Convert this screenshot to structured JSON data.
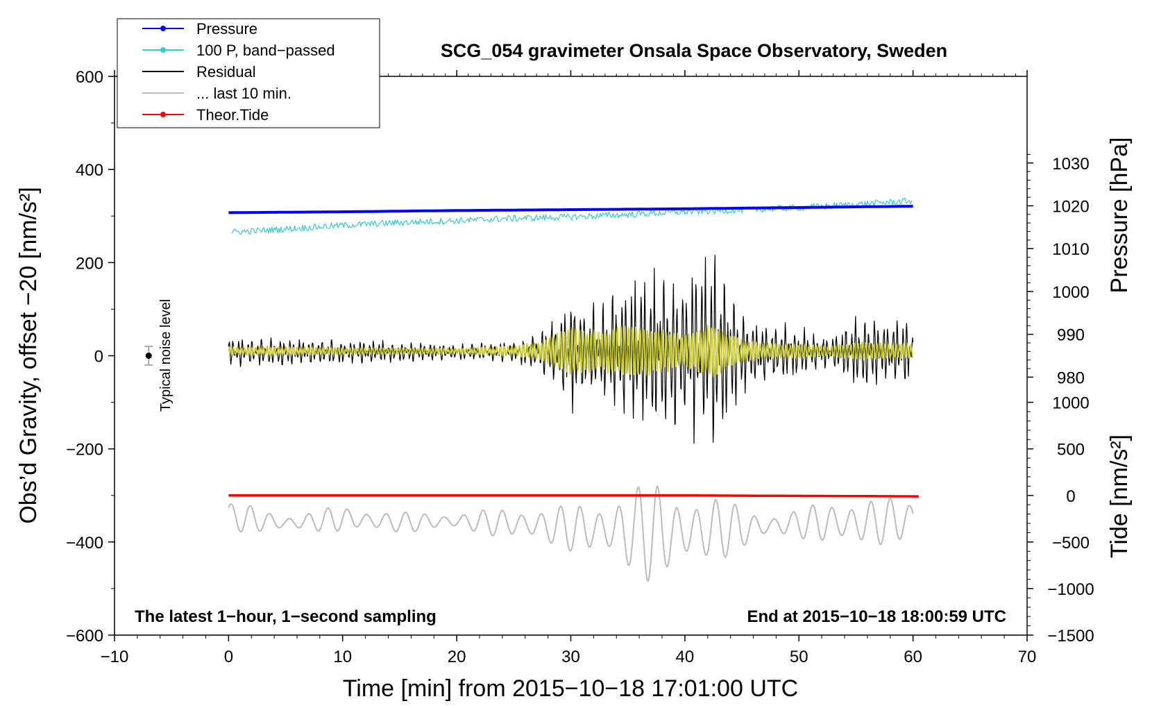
{
  "chart_data": {
    "type": "line",
    "title": "SCG_054 gravimeter Onsala Space Observatory, Sweden",
    "xlabel": "Time [min] from 2015−10−18 17:01:00 UTC",
    "ylabel_left": "Obs’d Gravity, offset −20 [nm/s²]",
    "ylabel_right_pressure": "Pressure [hPa]",
    "ylabel_right_tide": "Tide [nm/s²]",
    "xlim": [
      -10,
      70
    ],
    "ylim_left": [
      -600,
      600
    ],
    "x_ticks": [
      -10,
      0,
      10,
      20,
      30,
      40,
      50,
      60,
      70
    ],
    "x_tick_labels": [
      "−10",
      "0",
      "10",
      "20",
      "30",
      "40",
      "50",
      "60",
      "70"
    ],
    "y_left_ticks": [
      600,
      400,
      200,
      0,
      -200,
      -400,
      -600
    ],
    "y_left_tick_labels": [
      "600",
      "400",
      "200",
      "0",
      "−200",
      "−400",
      "−600"
    ],
    "pressure_axis": {
      "ticks": [
        1030,
        1020,
        1010,
        1000,
        990,
        980
      ],
      "labels": [
        "1030",
        "1020",
        "1010",
        "1000",
        "990",
        "980"
      ],
      "ref_gravity": 0,
      "ref_pressure": 985,
      "gravity_per_hpa": 9.2
    },
    "tide_axis": {
      "ticks": [
        1000,
        500,
        0,
        -500,
        -1000,
        -1500
      ],
      "labels": [
        "1000",
        "500",
        "0",
        "−500",
        "−1000",
        "−1500"
      ],
      "gravity_per_unit": 0.2,
      "offset": -300
    },
    "legend": {
      "position": "top-left",
      "entries": [
        {
          "label": "Pressure",
          "color": "#0000ff",
          "marker": "dot"
        },
        {
          "label": "100 P, band−passed",
          "color": "#33cccc",
          "marker": "dot"
        },
        {
          "label": "Residual",
          "color": "#000000",
          "marker": "none"
        },
        {
          "label": "... last 10 min.",
          "color": "#bbbbbb",
          "marker": "none"
        },
        {
          "label": "Theor.Tide",
          "color": "#ff0000",
          "marker": "dot"
        }
      ]
    },
    "series": [
      {
        "name": "Pressure",
        "color": "#0000ff",
        "axis": "pressure",
        "x": [
          0,
          10,
          20,
          30,
          40,
          50,
          60
        ],
        "values": [
          1018.4,
          1018.6,
          1018.9,
          1019.1,
          1019.3,
          1019.6,
          1019.9
        ]
      },
      {
        "name": "100 P, band−passed",
        "color": "#33cccc",
        "axis": "left",
        "x": [
          0,
          5,
          10,
          15,
          20,
          25,
          30,
          35,
          40,
          45,
          50,
          55,
          60
        ],
        "values": [
          265,
          272,
          280,
          286,
          290,
          295,
          298,
          303,
          309,
          313,
          318,
          325,
          333
        ]
      },
      {
        "name": "Residual",
        "color": "#000000",
        "axis": "left",
        "x": [
          0,
          5,
          10,
          15,
          20,
          25,
          27.5,
          30,
          32.5,
          35,
          37.5,
          40,
          42.5,
          45,
          47.5,
          50,
          52.5,
          55,
          57.5,
          60
        ],
        "amplitude": [
          25,
          27,
          22,
          20,
          15,
          18,
          40,
          110,
          80,
          140,
          160,
          140,
          200,
          80,
          55,
          50,
          25,
          70,
          60,
          65
        ]
      },
      {
        "name": "... last 10 min.",
        "color": "#bbbbbb",
        "axis": "left",
        "x": [
          0,
          5,
          10,
          15,
          20,
          25,
          27.5,
          30,
          32.5,
          35,
          37.5,
          40,
          42.5,
          45,
          47.5,
          50,
          52.5,
          55,
          57.5,
          60
        ],
        "center": [
          -345,
          -360,
          -350,
          -358,
          -355,
          -360,
          -365,
          -370,
          -372,
          -375,
          -380,
          -378,
          -372,
          -370,
          -365,
          -360,
          -358,
          -360,
          -355,
          -352
        ],
        "amplitude": [
          35,
          18,
          28,
          22,
          18,
          35,
          40,
          50,
          60,
          95,
          110,
          85,
          70,
          50,
          25,
          30,
          50,
          55,
          50,
          45
        ]
      },
      {
        "name": "Theor.Tide",
        "color": "#ff0000",
        "axis": "tide",
        "x": [
          0,
          10,
          20,
          30,
          40,
          50,
          60.5
        ],
        "values": [
          0,
          0,
          0,
          0,
          0,
          -5,
          -10
        ]
      },
      {
        "name": "band-passed residual",
        "color": "#cccc22",
        "axis": "left",
        "x": [
          0,
          5,
          10,
          15,
          20,
          25,
          27.5,
          30,
          32.5,
          35,
          37.5,
          40,
          42.5,
          45,
          47.5,
          50,
          52.5,
          55,
          57.5,
          60
        ],
        "amplitude": [
          8,
          9,
          7,
          6,
          6,
          10,
          20,
          50,
          40,
          55,
          45,
          35,
          55,
          22,
          15,
          14,
          10,
          18,
          16,
          15
        ]
      }
    ],
    "noise_marker": {
      "label": "Typical noise level",
      "x": -7,
      "y": 0,
      "error": 20
    },
    "annotations": {
      "bottom_left": "The latest 1−hour, 1−second sampling",
      "bottom_right": "End at 2015−10−18 18:00:59 UTC"
    }
  }
}
